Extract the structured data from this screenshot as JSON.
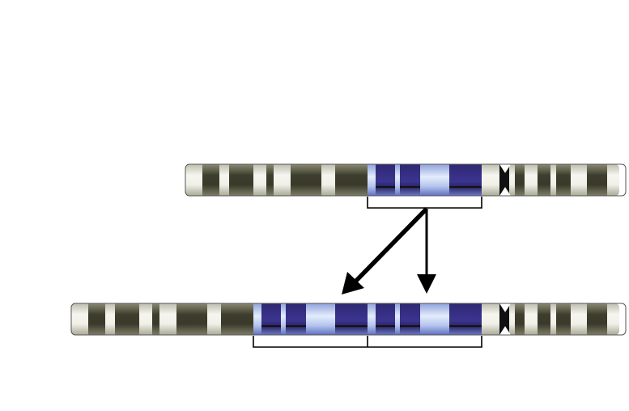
{
  "diagram": {
    "kind": "chromosome-duplication",
    "colors": {
      "background": "#ffffff",
      "band_dark": "#4a4a38",
      "band_light": "#ebebe2",
      "band_highlight": "#3b3488",
      "band_highlight_light": "#c8d4f2",
      "arrow": "#000000",
      "bracket": "#000000",
      "outline": "#444444"
    },
    "chromosomes": [
      {
        "id": "original",
        "segment_copies": 1
      },
      {
        "id": "duplicated",
        "segment_copies": 2
      }
    ],
    "arrows": [
      {
        "from": "original-segment",
        "to": "duplicated-copy-1"
      },
      {
        "from": "original-segment",
        "to": "duplicated-copy-2"
      }
    ]
  }
}
